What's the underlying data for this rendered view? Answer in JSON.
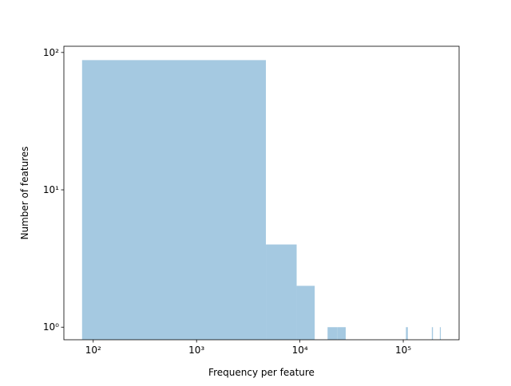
{
  "chart_data": {
    "type": "histogram",
    "xlabel": "Frequency per feature",
    "ylabel": "Number of features",
    "bins": [
      78,
      4688,
      9298,
      13908,
      18518,
      23128,
      27738,
      32348,
      36958,
      41568,
      46178,
      50788,
      55398,
      60008,
      64618,
      69228,
      73838,
      78448,
      83058,
      87668,
      92278,
      96888,
      101498,
      106108,
      110718,
      115328,
      119938,
      124548,
      129158,
      133768,
      138378,
      142988,
      147598,
      152208,
      156818,
      161428,
      166038,
      170648,
      175258,
      179868,
      184478,
      189088,
      193698,
      198308,
      202918,
      207528,
      212138,
      216748,
      221358,
      225968,
      230578
    ],
    "counts": [
      88,
      4,
      2,
      0,
      1,
      1,
      0,
      0,
      0,
      0,
      0,
      0,
      0,
      0,
      0,
      0,
      0,
      0,
      0,
      0,
      0,
      0,
      0,
      1,
      0,
      0,
      0,
      0,
      0,
      0,
      0,
      0,
      0,
      0,
      0,
      0,
      0,
      0,
      0,
      0,
      0,
      1,
      0,
      0,
      0,
      0,
      0,
      0,
      0,
      1
    ],
    "color": "#a5c9e1",
    "xscale": "log",
    "yscale": "log",
    "xlim": [
      52,
      347000
    ],
    "ylim": [
      0.81,
      111
    ],
    "xticks": [
      {
        "value": 100,
        "label": "10²"
      },
      {
        "value": 1000,
        "label": "10³"
      },
      {
        "value": 10000,
        "label": "10⁴"
      },
      {
        "value": 100000,
        "label": "10⁵"
      }
    ],
    "yticks": [
      {
        "value": 1,
        "label": "10⁰"
      },
      {
        "value": 10,
        "label": "10¹"
      },
      {
        "value": 100,
        "label": "10²"
      }
    ]
  }
}
